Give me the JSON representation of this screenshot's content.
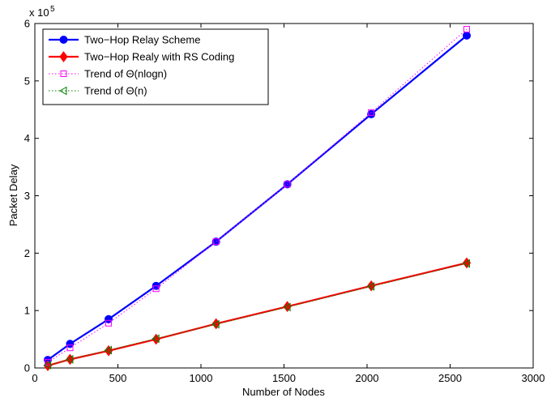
{
  "chart_data": {
    "type": "line",
    "xlabel": "Number of Nodes",
    "ylabel": "Packet Delay",
    "xlim": [
      0,
      3000
    ],
    "ylim": [
      0,
      6
    ],
    "xticks": [
      0,
      500,
      1000,
      1500,
      2000,
      2500,
      3000
    ],
    "yticks": [
      0,
      1,
      2,
      3,
      4,
      5,
      6
    ],
    "y_multiplier_text": "x 10",
    "y_multiplier_exp": "5",
    "grid": false,
    "legend_position": "top-left",
    "series": [
      {
        "name": "Two−Hop Relay Scheme",
        "color": "#0000ff",
        "marker": "circle",
        "line": "solid",
        "x": [
          78,
          212,
          444,
          730,
          1091,
          1520,
          2025,
          2600
        ],
        "y": [
          0.14,
          0.42,
          0.85,
          1.43,
          2.2,
          3.2,
          4.42,
          5.79
        ]
      },
      {
        "name": "Two−Hop Realy with RS Coding",
        "color": "#ff0000",
        "marker": "diamond",
        "line": "solid",
        "x": [
          78,
          212,
          444,
          730,
          1091,
          1520,
          2025,
          2600
        ],
        "y": [
          0.04,
          0.15,
          0.3,
          0.5,
          0.77,
          1.07,
          1.43,
          1.83
        ]
      },
      {
        "name": "Trend of Θ(nlogn)",
        "color": "#ff00ff",
        "marker": "square",
        "line": "dotted",
        "x": [
          78,
          212,
          444,
          730,
          1091,
          1520,
          2025,
          2600
        ],
        "y": [
          0.1,
          0.35,
          0.78,
          1.38,
          2.2,
          3.2,
          4.45,
          5.9
        ]
      },
      {
        "name": "Trend of Θ(n)",
        "color": "#008000",
        "marker": "triangle-left",
        "line": "dotted",
        "x": [
          78,
          212,
          444,
          730,
          1091,
          1520,
          2025,
          2600
        ],
        "y": [
          0.05,
          0.15,
          0.31,
          0.51,
          0.76,
          1.06,
          1.42,
          1.82
        ]
      }
    ]
  }
}
